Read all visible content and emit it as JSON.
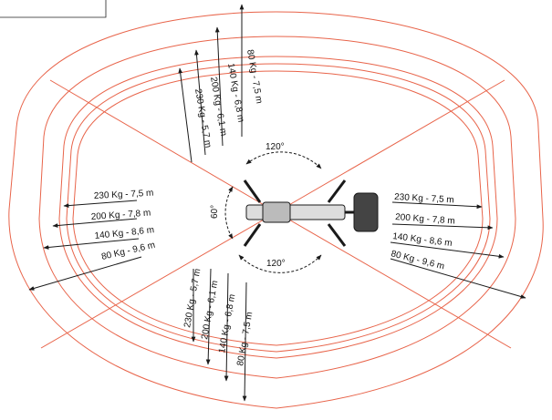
{
  "colors": {
    "envelope": "#e8644a",
    "ink": "#1a1a1a",
    "background": "#ffffff"
  },
  "angles": {
    "front": "120°",
    "side": "60°",
    "rear": "120°"
  },
  "load_sets": {
    "upper": [
      "80 Kg - 7,5 m",
      "140 Kg - 6,8 m",
      "200 Kg - 6,1 m",
      "230 Kg - 5,7 m"
    ],
    "lower": [
      "230 Kg - 5,7 m",
      "200 Kg - 6,1 m",
      "140 Kg - 6,8 m",
      "80 Kg - 7,5 m"
    ],
    "left": [
      "230 Kg - 7,5 m",
      "200 Kg - 7,8 m",
      "140 Kg - 8,6 m",
      "80 Kg - 9,6 m"
    ],
    "right": [
      "230 Kg - 7,5 m",
      "200 Kg - 7,8 m",
      "140 Kg - 8,6 m",
      "80 Kg - 9,6 m"
    ]
  }
}
